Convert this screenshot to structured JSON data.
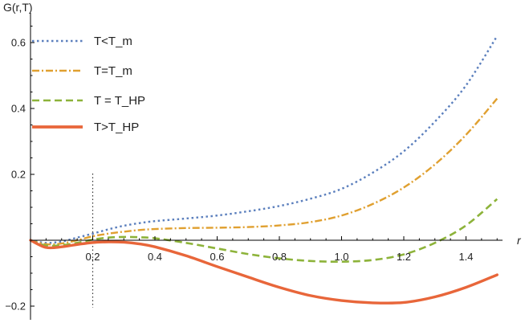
{
  "chart_data": {
    "type": "line",
    "ylabel": "G(r,T)",
    "xlabel": "r",
    "xlim": [
      0,
      1.5
    ],
    "ylim": [
      -0.22,
      0.66
    ],
    "x_ticks": [
      0.2,
      0.4,
      0.6,
      0.8,
      1.0,
      1.2,
      1.4
    ],
    "x_tick_labels": [
      "0.2",
      "0.4",
      "0.6",
      "0.8",
      "1.0",
      "1.2",
      "1.4"
    ],
    "y_ticks": [
      -0.2,
      0.2,
      0.4,
      0.6
    ],
    "y_tick_labels": [
      "−0.2",
      "0.2",
      "0.4",
      "0.6"
    ],
    "reference_line": {
      "x": 0.2,
      "style": "dotted"
    },
    "legend_position": "top-left",
    "series": [
      {
        "name": "T<T_m",
        "color": "#5b7fbd",
        "dash": "dotted",
        "x": [
          0,
          0.05,
          0.1,
          0.15,
          0.2,
          0.25,
          0.3,
          0.35,
          0.4,
          0.5,
          0.6,
          0.7,
          0.8,
          0.9,
          1.0,
          1.1,
          1.2,
          1.3,
          1.4,
          1.5
        ],
        "y": [
          0,
          -0.008,
          -0.004,
          0.008,
          0.02,
          0.033,
          0.044,
          0.052,
          0.058,
          0.066,
          0.075,
          0.088,
          0.104,
          0.126,
          0.156,
          0.205,
          0.27,
          0.36,
          0.47,
          0.62
        ]
      },
      {
        "name": "T=T_m",
        "color": "#e0a030",
        "dash": "dashdot",
        "x": [
          0,
          0.05,
          0.1,
          0.15,
          0.2,
          0.25,
          0.3,
          0.35,
          0.4,
          0.5,
          0.6,
          0.7,
          0.8,
          0.9,
          1.0,
          1.1,
          1.2,
          1.3,
          1.4,
          1.5
        ],
        "y": [
          0,
          -0.012,
          -0.01,
          0.0,
          0.012,
          0.02,
          0.026,
          0.031,
          0.034,
          0.037,
          0.038,
          0.04,
          0.045,
          0.055,
          0.075,
          0.11,
          0.16,
          0.23,
          0.32,
          0.43
        ]
      },
      {
        "name": "T = T_HP",
        "color": "#8db33a",
        "dash": "dashed",
        "x": [
          0,
          0.05,
          0.1,
          0.15,
          0.2,
          0.25,
          0.3,
          0.35,
          0.4,
          0.5,
          0.6,
          0.7,
          0.8,
          0.9,
          1.0,
          1.1,
          1.2,
          1.3,
          1.4,
          1.5
        ],
        "y": [
          0,
          -0.016,
          -0.015,
          -0.008,
          0.002,
          0.008,
          0.01,
          0.009,
          0.006,
          -0.008,
          -0.025,
          -0.042,
          -0.055,
          -0.063,
          -0.065,
          -0.06,
          -0.043,
          -0.008,
          0.045,
          0.125
        ]
      },
      {
        "name": "T>T_HP",
        "color": "#e8663a",
        "dash": "solid",
        "x": [
          0,
          0.05,
          0.1,
          0.15,
          0.2,
          0.25,
          0.3,
          0.35,
          0.4,
          0.5,
          0.6,
          0.7,
          0.8,
          0.9,
          1.0,
          1.1,
          1.2,
          1.3,
          1.4,
          1.5
        ],
        "y": [
          0,
          -0.022,
          -0.02,
          -0.013,
          -0.007,
          -0.005,
          -0.006,
          -0.011,
          -0.02,
          -0.047,
          -0.08,
          -0.112,
          -0.143,
          -0.168,
          -0.183,
          -0.19,
          -0.189,
          -0.172,
          -0.143,
          -0.105
        ]
      }
    ]
  }
}
